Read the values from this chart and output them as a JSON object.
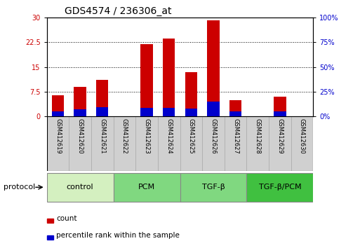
{
  "title": "GDS4574 / 236306_at",
  "samples": [
    "GSM412619",
    "GSM412620",
    "GSM412621",
    "GSM412622",
    "GSM412623",
    "GSM412624",
    "GSM412625",
    "GSM412626",
    "GSM412627",
    "GSM412628",
    "GSM412629",
    "GSM412630"
  ],
  "count_values": [
    6.5,
    9.0,
    11.0,
    0.0,
    22.0,
    23.5,
    13.5,
    29.0,
    5.0,
    0.0,
    6.0,
    0.0
  ],
  "percentile_values": [
    1.5,
    2.2,
    2.8,
    0.0,
    2.7,
    2.6,
    2.5,
    4.5,
    1.5,
    0.0,
    1.5,
    0.0
  ],
  "ylim_left": [
    0,
    30
  ],
  "ylim_right": [
    0,
    100
  ],
  "yticks_left": [
    0,
    7.5,
    15,
    22.5,
    30
  ],
  "yticks_right": [
    0,
    25,
    50,
    75,
    100
  ],
  "ytick_labels_left": [
    "0",
    "7.5",
    "15",
    "22.5",
    "30"
  ],
  "ytick_labels_right": [
    "0%",
    "25%",
    "50%",
    "75%",
    "100%"
  ],
  "count_color": "#cc0000",
  "percentile_color": "#0000cc",
  "bar_width": 0.55,
  "groups_info": [
    {
      "name": "control",
      "start": 0,
      "end": 2,
      "color": "#d4f0c0"
    },
    {
      "name": "PCM",
      "start": 3,
      "end": 5,
      "color": "#80d880"
    },
    {
      "name": "TGF-β",
      "start": 6,
      "end": 8,
      "color": "#80d880"
    },
    {
      "name": "TGF-β/PCM",
      "start": 9,
      "end": 11,
      "color": "#40c040"
    }
  ],
  "protocol_label": "protocol",
  "legend_count_label": "count",
  "legend_percentile_label": "percentile rank within the sample",
  "label_area_color": "#d0d0d0",
  "title_fontsize": 10,
  "tick_fontsize": 7,
  "sample_fontsize": 6,
  "group_fontsize": 8,
  "legend_fontsize": 7.5
}
